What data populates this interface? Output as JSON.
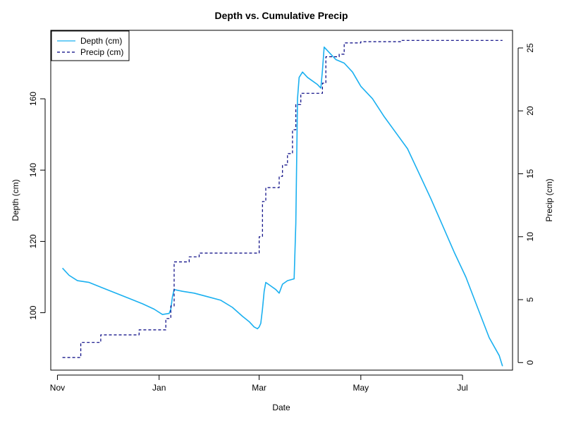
{
  "chart_data": {
    "type": "line",
    "title": "Depth vs. Cumulative Precip",
    "xlabel": "Date",
    "ylabel_left": "Depth (cm)",
    "ylabel_right": "Precip (cm)",
    "xlim": [
      "2023-10-28",
      "2024-07-31"
    ],
    "ylim_left": [
      83.9,
      179.2
    ],
    "ylim_right": [
      -0.6,
      26.4
    ],
    "x_ticks": [
      {
        "date": "2023-11-01",
        "label": "Nov"
      },
      {
        "date": "2024-01-01",
        "label": "Jan"
      },
      {
        "date": "2024-03-01",
        "label": "Mar"
      },
      {
        "date": "2024-05-01",
        "label": "May"
      },
      {
        "date": "2024-07-01",
        "label": "Jul"
      }
    ],
    "y_ticks_left": [
      100,
      120,
      140,
      160
    ],
    "y_ticks_right": [
      0,
      5,
      10,
      15,
      20,
      25
    ],
    "legend": {
      "placement": "top-left"
    },
    "series": [
      {
        "name": "Depth (cm)",
        "axis": "left",
        "color": "#1ab0f0",
        "style": "solid",
        "step": false,
        "points": [
          [
            "2023-11-04",
            112.5
          ],
          [
            "2023-11-08",
            110.5
          ],
          [
            "2023-11-13",
            109.0
          ],
          [
            "2023-11-20",
            108.5
          ],
          [
            "2023-11-28",
            107.0
          ],
          [
            "2023-12-06",
            105.5
          ],
          [
            "2023-12-14",
            104.0
          ],
          [
            "2023-12-22",
            102.5
          ],
          [
            "2023-12-29",
            101.0
          ],
          [
            "2024-01-03",
            99.5
          ],
          [
            "2024-01-07",
            99.8
          ],
          [
            "2024-01-08",
            101.0
          ],
          [
            "2024-01-09",
            104.5
          ],
          [
            "2024-01-10",
            106.5
          ],
          [
            "2024-01-15",
            106.0
          ],
          [
            "2024-01-22",
            105.5
          ],
          [
            "2024-01-30",
            104.5
          ],
          [
            "2024-02-07",
            103.5
          ],
          [
            "2024-02-14",
            101.5
          ],
          [
            "2024-02-20",
            99.0
          ],
          [
            "2024-02-24",
            97.5
          ],
          [
            "2024-02-27",
            96.0
          ],
          [
            "2024-02-29",
            95.5
          ],
          [
            "2024-03-01",
            96.0
          ],
          [
            "2024-03-02",
            97.0
          ],
          [
            "2024-03-03",
            101.0
          ],
          [
            "2024-03-04",
            106.0
          ],
          [
            "2024-03-05",
            108.5
          ],
          [
            "2024-03-08",
            107.5
          ],
          [
            "2024-03-11",
            106.5
          ],
          [
            "2024-03-13",
            105.5
          ],
          [
            "2024-03-15",
            108.0
          ],
          [
            "2024-03-18",
            109.0
          ],
          [
            "2024-03-22",
            109.5
          ],
          [
            "2024-03-23",
            125.0
          ],
          [
            "2024-03-24",
            160.0
          ],
          [
            "2024-03-25",
            166.0
          ],
          [
            "2024-03-27",
            167.5
          ],
          [
            "2024-03-30",
            166.0
          ],
          [
            "2024-04-02",
            165.0
          ],
          [
            "2024-04-05",
            164.0
          ],
          [
            "2024-04-07",
            163.0
          ],
          [
            "2024-04-08",
            168.0
          ],
          [
            "2024-04-09",
            174.5
          ],
          [
            "2024-04-12",
            173.0
          ],
          [
            "2024-04-16",
            171.0
          ],
          [
            "2024-04-21",
            170.0
          ],
          [
            "2024-04-26",
            167.5
          ],
          [
            "2024-05-01",
            163.5
          ],
          [
            "2024-05-08",
            160.0
          ],
          [
            "2024-05-15",
            155.0
          ],
          [
            "2024-05-22",
            150.5
          ],
          [
            "2024-05-29",
            146.0
          ],
          [
            "2024-06-05",
            139.0
          ],
          [
            "2024-06-12",
            132.0
          ],
          [
            "2024-06-19",
            124.5
          ],
          [
            "2024-06-26",
            117.0
          ],
          [
            "2024-07-03",
            110.0
          ],
          [
            "2024-07-10",
            101.5
          ],
          [
            "2024-07-17",
            93.0
          ],
          [
            "2024-07-23",
            88.0
          ],
          [
            "2024-07-25",
            85.0
          ]
        ]
      },
      {
        "name": "Precip (cm)",
        "axis": "right",
        "color": "#000080",
        "style": "dashed",
        "step": true,
        "points": [
          [
            "2023-11-04",
            0.4
          ],
          [
            "2023-11-15",
            1.6
          ],
          [
            "2023-11-27",
            2.2
          ],
          [
            "2023-12-20",
            2.6
          ],
          [
            "2024-01-05",
            3.5
          ],
          [
            "2024-01-08",
            4.5
          ],
          [
            "2024-01-10",
            8.0
          ],
          [
            "2024-01-19",
            8.4
          ],
          [
            "2024-01-25",
            8.7
          ],
          [
            "2024-02-27",
            8.7
          ],
          [
            "2024-03-01",
            10.0
          ],
          [
            "2024-03-03",
            12.8
          ],
          [
            "2024-03-05",
            13.9
          ],
          [
            "2024-03-13",
            14.8
          ],
          [
            "2024-03-15",
            15.7
          ],
          [
            "2024-03-18",
            16.6
          ],
          [
            "2024-03-21",
            18.5
          ],
          [
            "2024-03-23",
            20.5
          ],
          [
            "2024-03-26",
            21.4
          ],
          [
            "2024-04-07",
            21.4
          ],
          [
            "2024-04-08",
            22.2
          ],
          [
            "2024-04-10",
            24.3
          ],
          [
            "2024-04-18",
            24.5
          ],
          [
            "2024-04-21",
            25.4
          ],
          [
            "2024-05-01",
            25.5
          ],
          [
            "2024-05-25",
            25.6
          ],
          [
            "2024-07-25",
            25.6
          ]
        ]
      }
    ]
  }
}
